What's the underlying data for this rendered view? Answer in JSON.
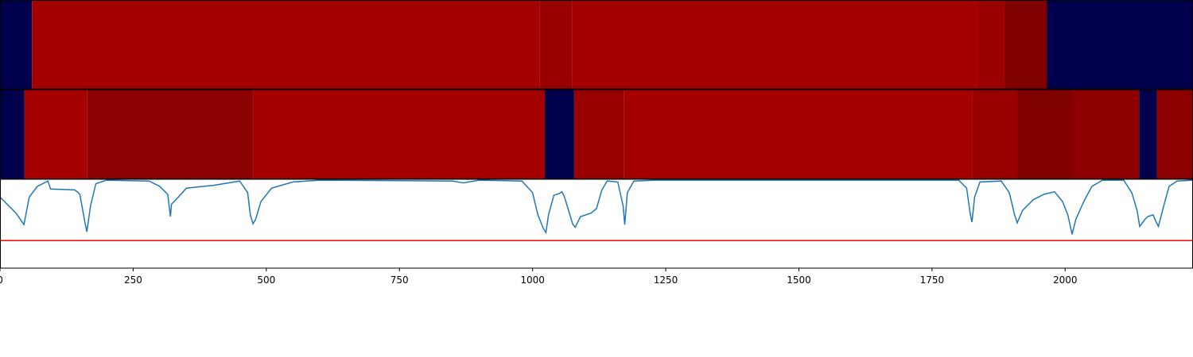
{
  "chart_data": {
    "type": "line",
    "xlim": [
      0,
      2240
    ],
    "xticks": [
      0,
      250,
      500,
      750,
      1000,
      1250,
      1500,
      1750,
      2000
    ],
    "ylim": [
      0,
      1
    ],
    "strips": [
      {
        "edges": [
          0,
          60,
          1013,
          1075,
          1836,
          1886,
          1966,
          2240
        ],
        "colors": [
          "#00004c",
          "#a50000",
          "#990000",
          "#a50000",
          "#990000",
          "#800000",
          "#00004c"
        ]
      },
      {
        "edges": [
          0,
          46,
          164,
          475,
          1023,
          1078,
          1172,
          1825,
          1910,
          2013,
          2139,
          2172,
          2240
        ],
        "colors": [
          "#00004c",
          "#a50000",
          "#8b0000",
          "#a50000",
          "#00004c",
          "#990000",
          "#a50000",
          "#990000",
          "#800000",
          "#8c0000",
          "#00004c",
          "#8c0000"
        ]
      }
    ],
    "series": [
      {
        "color": "#1f77b4",
        "x": [
          0,
          30,
          45,
          55,
          70,
          90,
          95,
          140,
          145,
          150,
          160,
          163,
          170,
          180,
          200,
          280,
          300,
          315,
          320,
          322,
          335,
          350,
          380,
          400,
          450,
          465,
          470,
          475,
          480,
          490,
          510,
          550,
          600,
          850,
          870,
          900,
          980,
          1000,
          1010,
          1020,
          1025,
          1030,
          1040,
          1050,
          1055,
          1060,
          1075,
          1080,
          1090,
          1100,
          1110,
          1120,
          1130,
          1140,
          1160,
          1170,
          1173,
          1178,
          1190,
          1230,
          1800,
          1815,
          1822,
          1825,
          1830,
          1840,
          1880,
          1895,
          1905,
          1910,
          1920,
          1940,
          1960,
          1980,
          1995,
          2005,
          2013,
          2020,
          2035,
          2050,
          2070,
          2110,
          2125,
          2135,
          2140,
          2150,
          2155,
          2165,
          2170,
          2175,
          2185,
          2195,
          2210,
          2240
        ],
        "values": [
          0.8,
          0.62,
          0.49,
          0.8,
          0.92,
          0.98,
          0.89,
          0.88,
          0.86,
          0.83,
          0.5,
          0.41,
          0.7,
          0.95,
          0.99,
          0.98,
          0.92,
          0.83,
          0.58,
          0.72,
          0.8,
          0.9,
          0.92,
          0.93,
          0.98,
          0.85,
          0.6,
          0.5,
          0.55,
          0.75,
          0.9,
          0.97,
          0.99,
          0.98,
          0.96,
          0.99,
          0.98,
          0.85,
          0.6,
          0.45,
          0.4,
          0.6,
          0.82,
          0.84,
          0.86,
          0.8,
          0.5,
          0.46,
          0.58,
          0.6,
          0.62,
          0.67,
          0.88,
          0.98,
          0.97,
          0.7,
          0.49,
          0.85,
          0.98,
          0.99,
          0.99,
          0.9,
          0.6,
          0.52,
          0.8,
          0.97,
          0.98,
          0.85,
          0.6,
          0.51,
          0.65,
          0.77,
          0.83,
          0.86,
          0.75,
          0.6,
          0.38,
          0.55,
          0.75,
          0.92,
          0.99,
          0.99,
          0.85,
          0.65,
          0.47,
          0.55,
          0.58,
          0.6,
          0.53,
          0.47,
          0.7,
          0.92,
          0.98,
          0.99
        ]
      }
    ],
    "hline": {
      "value": 0.31,
      "color": "#ff0000"
    }
  }
}
